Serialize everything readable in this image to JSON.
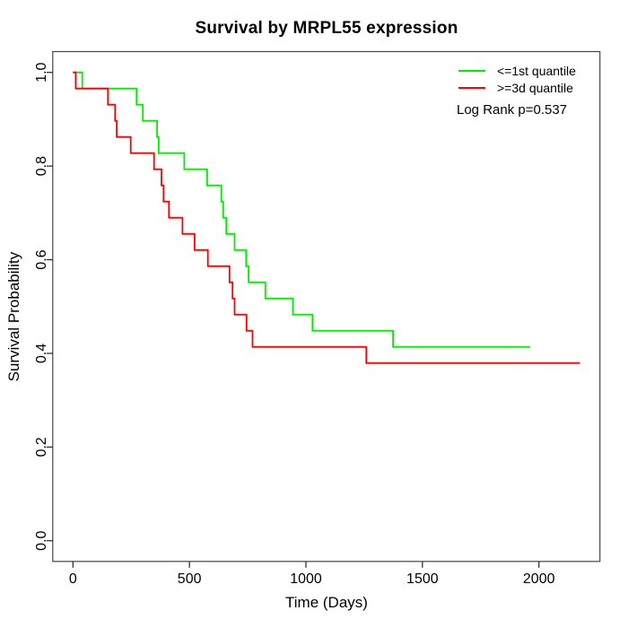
{
  "chart_data": {
    "type": "line",
    "subtype": "kaplan-meier-step",
    "title": "Survival by MRPL55 expression",
    "xlabel": "Time (Days)",
    "ylabel": "Survival Probability",
    "xlim": [
      0,
      2260
    ],
    "ylim": [
      0,
      1
    ],
    "x_ticks": [
      0,
      500,
      1000,
      1500,
      2000
    ],
    "y_ticks": [
      0,
      0.2,
      0.4,
      0.6,
      0.8,
      1
    ],
    "grid": false,
    "legend_position": "top-right",
    "annotation": "Log Rank p=0.537",
    "series": [
      {
        "name": "<=1st quantile",
        "color": "#00EE00",
        "end_time": 1961,
        "steps": [
          [
            0,
            1.0
          ],
          [
            40,
            0.9655
          ],
          [
            273,
            0.931
          ],
          [
            300,
            0.8966
          ],
          [
            361,
            0.8621
          ],
          [
            368,
            0.8276
          ],
          [
            478,
            0.7931
          ],
          [
            576,
            0.7586
          ],
          [
            637,
            0.7241
          ],
          [
            645,
            0.6897
          ],
          [
            658,
            0.6552
          ],
          [
            694,
            0.6207
          ],
          [
            743,
            0.5862
          ],
          [
            754,
            0.5517
          ],
          [
            826,
            0.5172
          ],
          [
            944,
            0.4828
          ],
          [
            1028,
            0.4483
          ],
          [
            1374,
            0.4138
          ]
        ]
      },
      {
        "name": ">=3d quantile",
        "color": "#FF0000",
        "end_time": 2176,
        "steps": [
          [
            0,
            1.0
          ],
          [
            12,
            0.9655
          ],
          [
            150,
            0.931
          ],
          [
            181,
            0.8966
          ],
          [
            188,
            0.8621
          ],
          [
            248,
            0.8276
          ],
          [
            348,
            0.7931
          ],
          [
            380,
            0.7586
          ],
          [
            389,
            0.7241
          ],
          [
            412,
            0.6897
          ],
          [
            470,
            0.6552
          ],
          [
            522,
            0.6207
          ],
          [
            579,
            0.5862
          ],
          [
            672,
            0.5517
          ],
          [
            685,
            0.5172
          ],
          [
            694,
            0.4828
          ],
          [
            745,
            0.4483
          ],
          [
            771,
            0.4138
          ],
          [
            1259,
            0.3793
          ]
        ]
      }
    ]
  }
}
